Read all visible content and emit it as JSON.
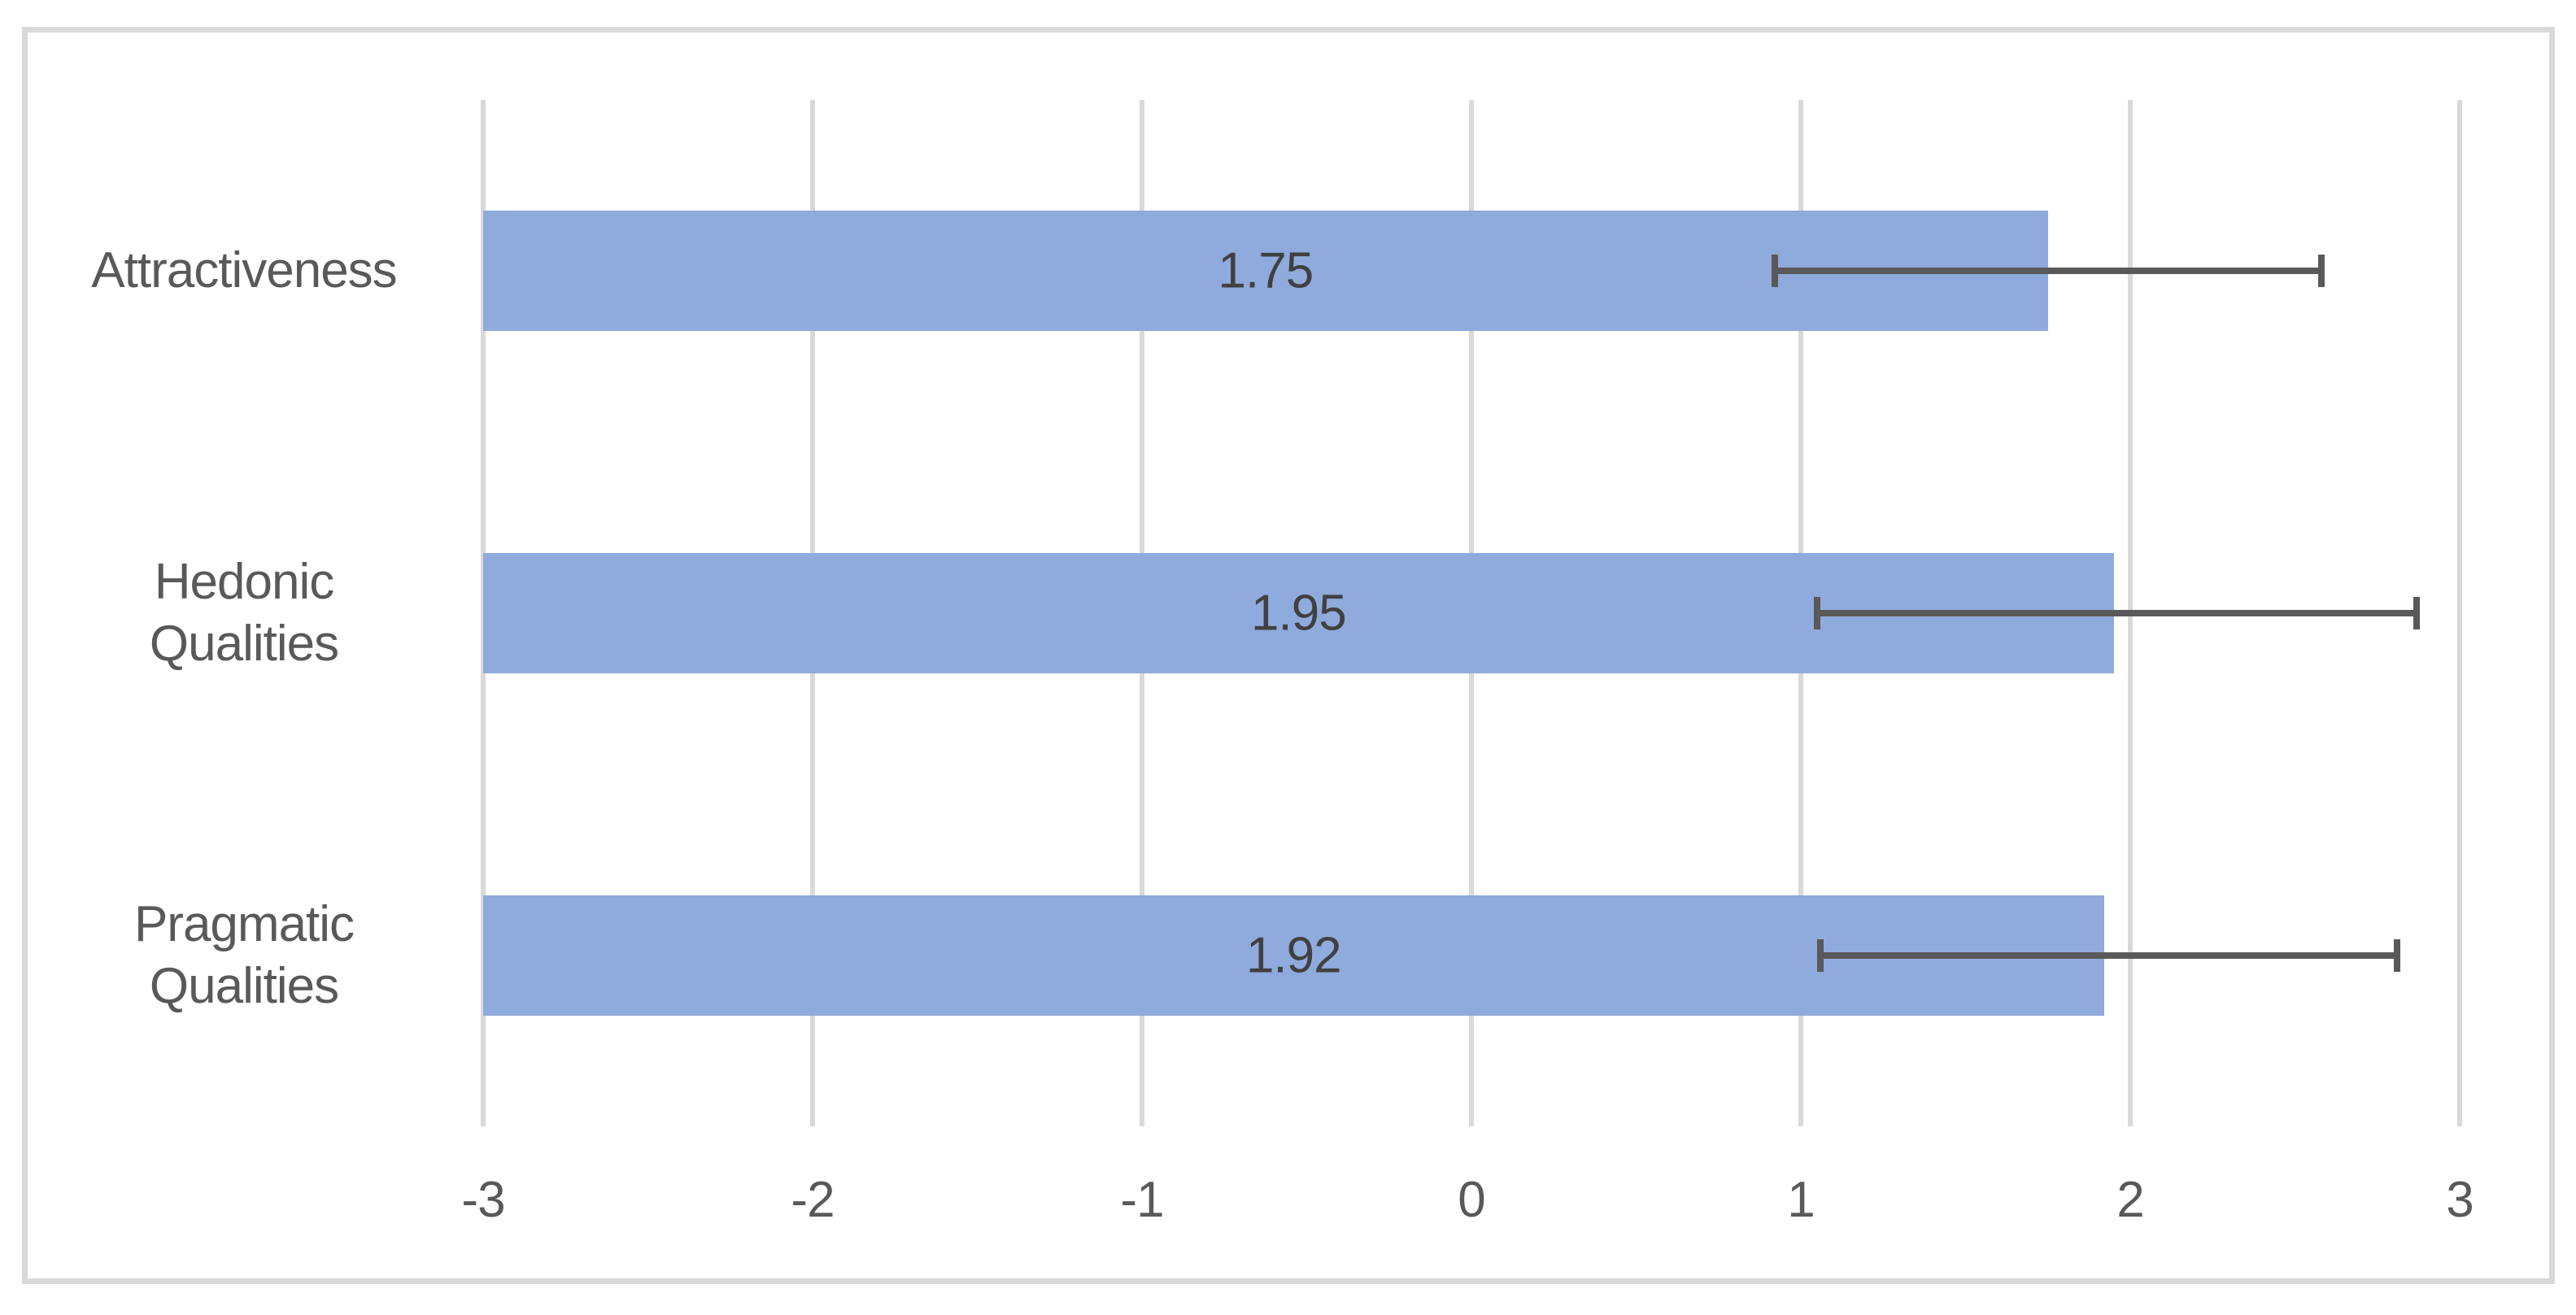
{
  "colors": {
    "bar_fill": "#8FAADC",
    "error_bar": "#595959",
    "gridline": "#D9D9D9",
    "chart_border": "#D9D9D9",
    "data_label_text": "#404040",
    "axis_tick_text": "#595959",
    "category_label_text": "#595959",
    "background": "#FFFFFF"
  },
  "chart_data": {
    "type": "bar",
    "orientation": "horizontal",
    "title": "",
    "xlabel": "",
    "ylabel": "",
    "categories": [
      "Attractiveness",
      "Hedonic Qualities",
      "Pragmatic Qualities"
    ],
    "category_label_lines": [
      [
        "Attractiveness"
      ],
      [
        "Hedonic",
        "Qualities"
      ],
      [
        "Pragmatic",
        "Qualities"
      ]
    ],
    "values": [
      1.75,
      1.95,
      1.92
    ],
    "data_labels": [
      "1.75",
      "1.95",
      "1.92"
    ],
    "data_label_position": "inside-center",
    "error_bars": [
      {
        "low": 0.92,
        "high": 2.58
      },
      {
        "low": 1.05,
        "high": 2.87
      },
      {
        "low": 1.06,
        "high": 2.81
      }
    ],
    "xlim": [
      -3,
      3
    ],
    "xticks": [
      -3,
      -2,
      -1,
      0,
      1,
      2,
      3
    ],
    "xtick_labels": [
      "-3",
      "-2",
      "-1",
      "0",
      "1",
      "2",
      "3"
    ],
    "bars_start_at": -3,
    "grid": "vertical-gridlines-on",
    "legend": "none"
  }
}
